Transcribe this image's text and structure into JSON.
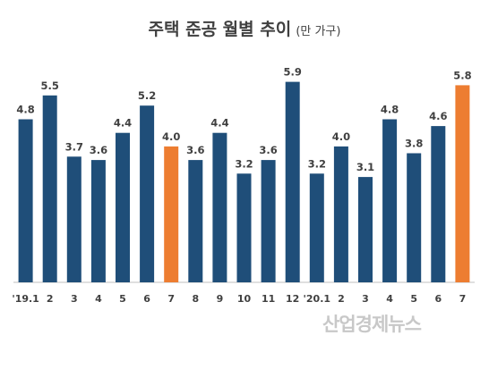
{
  "title": "주택 준공 월별 추이",
  "unit": "(만 가구)",
  "watermark": "산업경제뉴스",
  "colors": {
    "default": "#1f4e79",
    "highlight": "#ed7d31",
    "axis": "#bfbfbf",
    "text": "#404040"
  },
  "chart_data": {
    "type": "bar",
    "title": "주택 준공 월별 추이",
    "ylabel": "(만 가구)",
    "xlabel": "",
    "ylim": [
      0,
      6.6
    ],
    "grid": false,
    "categories": [
      "'19.1",
      "2",
      "3",
      "4",
      "5",
      "6",
      "7",
      "8",
      "9",
      "10",
      "11",
      "12",
      "'20.1",
      "2",
      "3",
      "4",
      "5",
      "6",
      "7"
    ],
    "values": [
      4.8,
      5.5,
      3.7,
      3.6,
      4.4,
      5.2,
      4.0,
      3.6,
      4.4,
      3.2,
      3.6,
      5.9,
      3.2,
      4.0,
      3.1,
      4.8,
      3.8,
      4.6,
      5.8
    ],
    "value_labels": [
      "4.8",
      "5.5",
      "3.7",
      "3.6",
      "4.4",
      "5.2",
      "4.0",
      "3.6",
      "4.4",
      "3.2",
      "3.6",
      "5.9",
      "3.2",
      "4.0",
      "3.1",
      "4.8",
      "3.8",
      "4.6",
      "5.8"
    ],
    "highlight_indices": [
      6,
      18
    ]
  }
}
